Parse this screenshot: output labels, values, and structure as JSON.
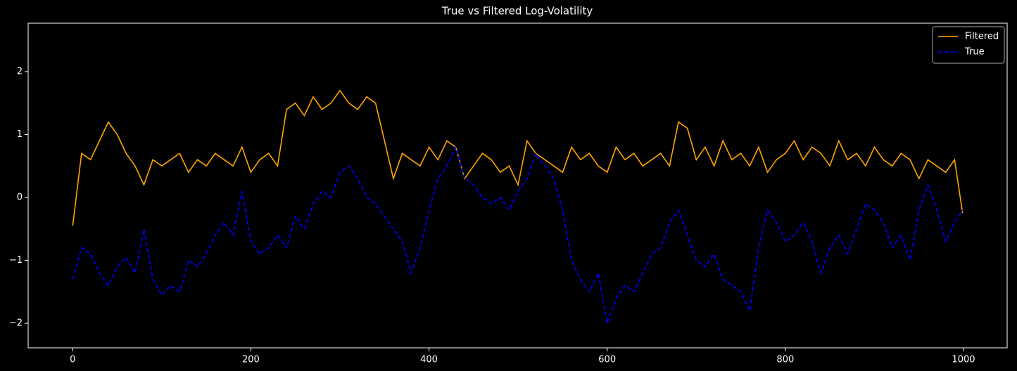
{
  "chart_data": {
    "type": "line",
    "title": "True vs Filtered Log-Volatility",
    "x": [
      0,
      10,
      20,
      30,
      40,
      50,
      60,
      70,
      80,
      90,
      100,
      110,
      120,
      130,
      140,
      150,
      160,
      170,
      180,
      190,
      200,
      210,
      220,
      230,
      240,
      250,
      260,
      270,
      280,
      290,
      300,
      310,
      320,
      330,
      340,
      350,
      360,
      370,
      380,
      390,
      400,
      410,
      420,
      430,
      440,
      450,
      460,
      470,
      480,
      490,
      500,
      510,
      520,
      530,
      540,
      550,
      560,
      570,
      580,
      590,
      600,
      610,
      620,
      630,
      640,
      650,
      660,
      670,
      680,
      690,
      700,
      710,
      720,
      730,
      740,
      750,
      760,
      770,
      780,
      790,
      800,
      810,
      820,
      830,
      840,
      850,
      860,
      870,
      880,
      890,
      900,
      910,
      920,
      930,
      940,
      950,
      960,
      970,
      980,
      990,
      999
    ],
    "series": [
      {
        "name": "Filtered",
        "color": "#ffa500",
        "linestyle": "solid",
        "values": [
          -0.45,
          0.7,
          0.6,
          0.9,
          1.2,
          1.0,
          0.7,
          0.5,
          0.2,
          0.6,
          0.5,
          0.6,
          0.7,
          0.4,
          0.6,
          0.5,
          0.7,
          0.6,
          0.5,
          0.8,
          0.4,
          0.6,
          0.7,
          0.5,
          1.4,
          1.5,
          1.3,
          1.6,
          1.4,
          1.5,
          1.7,
          1.5,
          1.4,
          1.6,
          1.5,
          0.9,
          0.3,
          0.7,
          0.6,
          0.5,
          0.8,
          0.6,
          0.9,
          0.8,
          0.3,
          0.5,
          0.7,
          0.6,
          0.4,
          0.5,
          0.2,
          0.9,
          0.7,
          0.6,
          0.5,
          0.4,
          0.8,
          0.6,
          0.7,
          0.5,
          0.4,
          0.8,
          0.6,
          0.7,
          0.5,
          0.6,
          0.7,
          0.5,
          1.2,
          1.1,
          0.6,
          0.8,
          0.5,
          0.9,
          0.6,
          0.7,
          0.5,
          0.8,
          0.4,
          0.6,
          0.7,
          0.9,
          0.6,
          0.8,
          0.7,
          0.5,
          0.9,
          0.6,
          0.7,
          0.5,
          0.8,
          0.6,
          0.5,
          0.7,
          0.6,
          0.3,
          0.6,
          0.5,
          0.4,
          0.6,
          -0.25
        ]
      },
      {
        "name": "True",
        "color": "#0000ff",
        "linestyle": "dashed",
        "values": [
          -1.3,
          -0.8,
          -0.9,
          -1.2,
          -1.4,
          -1.1,
          -0.95,
          -1.2,
          -0.5,
          -1.3,
          -1.55,
          -1.4,
          -1.5,
          -1.0,
          -1.1,
          -0.9,
          -0.6,
          -0.4,
          -0.6,
          0.1,
          -0.7,
          -0.9,
          -0.8,
          -0.6,
          -0.8,
          -0.3,
          -0.5,
          -0.1,
          0.1,
          0.0,
          0.4,
          0.5,
          0.3,
          0.0,
          -0.1,
          -0.3,
          -0.5,
          -0.7,
          -1.2,
          -0.8,
          -0.2,
          0.3,
          0.5,
          0.8,
          0.3,
          0.2,
          0.0,
          -0.1,
          0.0,
          -0.2,
          0.1,
          0.3,
          0.7,
          0.5,
          0.3,
          -0.2,
          -1.0,
          -1.3,
          -1.5,
          -1.2,
          -2.0,
          -1.6,
          -1.4,
          -1.5,
          -1.2,
          -0.9,
          -0.8,
          -0.4,
          -0.2,
          -0.6,
          -1.0,
          -1.1,
          -0.9,
          -1.3,
          -1.4,
          -1.5,
          -1.8,
          -0.8,
          -0.2,
          -0.4,
          -0.7,
          -0.6,
          -0.4,
          -0.7,
          -1.2,
          -0.8,
          -0.6,
          -0.9,
          -0.5,
          -0.1,
          -0.2,
          -0.4,
          -0.8,
          -0.6,
          -1.0,
          -0.2,
          0.2,
          -0.2,
          -0.7,
          -0.4,
          -0.2
        ]
      }
    ],
    "xlim": [
      -50,
      1049
    ],
    "ylim": [
      -2.39,
      2.77
    ],
    "xticks": [
      0,
      200,
      400,
      600,
      800,
      1000
    ],
    "yticks": [
      {
        "value": -2,
        "label": "−2"
      },
      {
        "value": -1,
        "label": "−1"
      },
      0,
      1,
      2
    ],
    "legend": "upper right",
    "grid": false
  }
}
